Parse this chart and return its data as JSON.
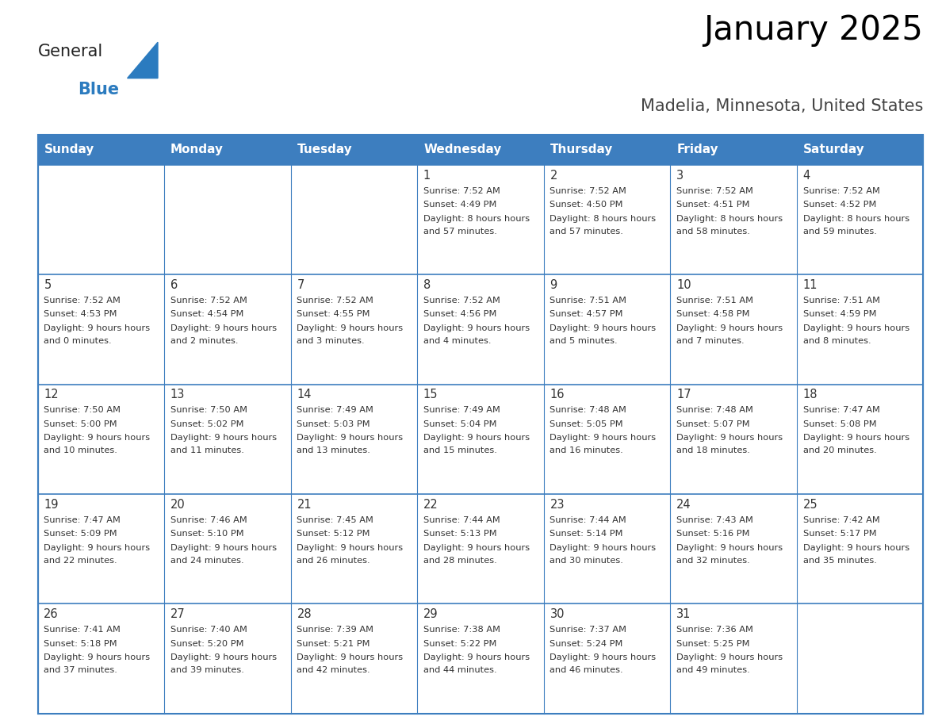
{
  "title": "January 2025",
  "subtitle": "Madelia, Minnesota, United States",
  "days_of_week": [
    "Sunday",
    "Monday",
    "Tuesday",
    "Wednesday",
    "Thursday",
    "Friday",
    "Saturday"
  ],
  "header_bg": "#3d7ebf",
  "header_text": "#ffffff",
  "border_color": "#3d7ebf",
  "text_color": "#333333",
  "day_num_color": "#333333",
  "calendar_data": [
    [
      null,
      null,
      null,
      {
        "day": 1,
        "sunrise": "7:52 AM",
        "sunset": "4:49 PM",
        "daylight": "8 hours and 57 minutes"
      },
      {
        "day": 2,
        "sunrise": "7:52 AM",
        "sunset": "4:50 PM",
        "daylight": "8 hours and 57 minutes"
      },
      {
        "day": 3,
        "sunrise": "7:52 AM",
        "sunset": "4:51 PM",
        "daylight": "8 hours and 58 minutes"
      },
      {
        "day": 4,
        "sunrise": "7:52 AM",
        "sunset": "4:52 PM",
        "daylight": "8 hours and 59 minutes"
      }
    ],
    [
      {
        "day": 5,
        "sunrise": "7:52 AM",
        "sunset": "4:53 PM",
        "daylight": "9 hours and 0 minutes"
      },
      {
        "day": 6,
        "sunrise": "7:52 AM",
        "sunset": "4:54 PM",
        "daylight": "9 hours and 2 minutes"
      },
      {
        "day": 7,
        "sunrise": "7:52 AM",
        "sunset": "4:55 PM",
        "daylight": "9 hours and 3 minutes"
      },
      {
        "day": 8,
        "sunrise": "7:52 AM",
        "sunset": "4:56 PM",
        "daylight": "9 hours and 4 minutes"
      },
      {
        "day": 9,
        "sunrise": "7:51 AM",
        "sunset": "4:57 PM",
        "daylight": "9 hours and 5 minutes"
      },
      {
        "day": 10,
        "sunrise": "7:51 AM",
        "sunset": "4:58 PM",
        "daylight": "9 hours and 7 minutes"
      },
      {
        "day": 11,
        "sunrise": "7:51 AM",
        "sunset": "4:59 PM",
        "daylight": "9 hours and 8 minutes"
      }
    ],
    [
      {
        "day": 12,
        "sunrise": "7:50 AM",
        "sunset": "5:00 PM",
        "daylight": "9 hours and 10 minutes"
      },
      {
        "day": 13,
        "sunrise": "7:50 AM",
        "sunset": "5:02 PM",
        "daylight": "9 hours and 11 minutes"
      },
      {
        "day": 14,
        "sunrise": "7:49 AM",
        "sunset": "5:03 PM",
        "daylight": "9 hours and 13 minutes"
      },
      {
        "day": 15,
        "sunrise": "7:49 AM",
        "sunset": "5:04 PM",
        "daylight": "9 hours and 15 minutes"
      },
      {
        "day": 16,
        "sunrise": "7:48 AM",
        "sunset": "5:05 PM",
        "daylight": "9 hours and 16 minutes"
      },
      {
        "day": 17,
        "sunrise": "7:48 AM",
        "sunset": "5:07 PM",
        "daylight": "9 hours and 18 minutes"
      },
      {
        "day": 18,
        "sunrise": "7:47 AM",
        "sunset": "5:08 PM",
        "daylight": "9 hours and 20 minutes"
      }
    ],
    [
      {
        "day": 19,
        "sunrise": "7:47 AM",
        "sunset": "5:09 PM",
        "daylight": "9 hours and 22 minutes"
      },
      {
        "day": 20,
        "sunrise": "7:46 AM",
        "sunset": "5:10 PM",
        "daylight": "9 hours and 24 minutes"
      },
      {
        "day": 21,
        "sunrise": "7:45 AM",
        "sunset": "5:12 PM",
        "daylight": "9 hours and 26 minutes"
      },
      {
        "day": 22,
        "sunrise": "7:44 AM",
        "sunset": "5:13 PM",
        "daylight": "9 hours and 28 minutes"
      },
      {
        "day": 23,
        "sunrise": "7:44 AM",
        "sunset": "5:14 PM",
        "daylight": "9 hours and 30 minutes"
      },
      {
        "day": 24,
        "sunrise": "7:43 AM",
        "sunset": "5:16 PM",
        "daylight": "9 hours and 32 minutes"
      },
      {
        "day": 25,
        "sunrise": "7:42 AM",
        "sunset": "5:17 PM",
        "daylight": "9 hours and 35 minutes"
      }
    ],
    [
      {
        "day": 26,
        "sunrise": "7:41 AM",
        "sunset": "5:18 PM",
        "daylight": "9 hours and 37 minutes"
      },
      {
        "day": 27,
        "sunrise": "7:40 AM",
        "sunset": "5:20 PM",
        "daylight": "9 hours and 39 minutes"
      },
      {
        "day": 28,
        "sunrise": "7:39 AM",
        "sunset": "5:21 PM",
        "daylight": "9 hours and 42 minutes"
      },
      {
        "day": 29,
        "sunrise": "7:38 AM",
        "sunset": "5:22 PM",
        "daylight": "9 hours and 44 minutes"
      },
      {
        "day": 30,
        "sunrise": "7:37 AM",
        "sunset": "5:24 PM",
        "daylight": "9 hours and 46 minutes"
      },
      {
        "day": 31,
        "sunrise": "7:36 AM",
        "sunset": "5:25 PM",
        "daylight": "9 hours and 49 minutes"
      },
      null
    ]
  ],
  "logo_text1": "General",
  "logo_text2": "Blue",
  "logo_color1": "#222222",
  "logo_color2": "#2b7bbf",
  "logo_triangle_color": "#2b7bbf"
}
